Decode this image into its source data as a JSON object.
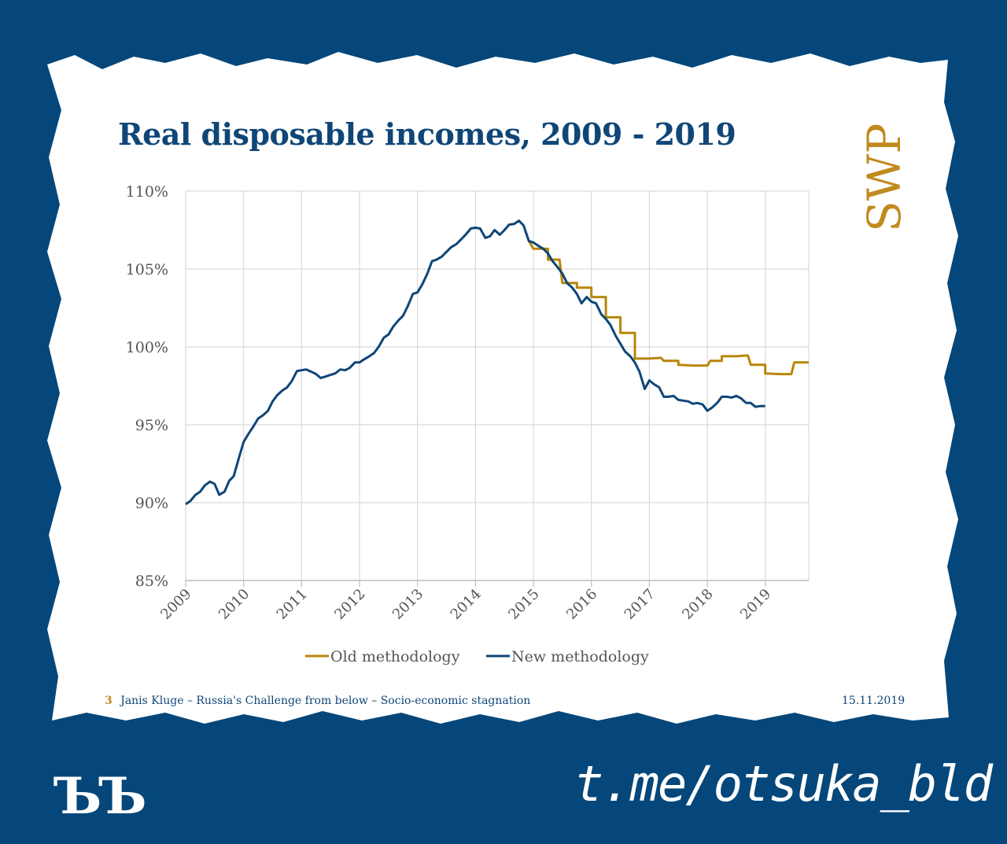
{
  "slide": {
    "title": "Real disposable incomes, 2009 - 2019",
    "brand": "SWP",
    "footer_page": "3",
    "footer_text": "Janis Kluge – Russia's Challenge from below – Socio-economic stagnation",
    "footer_date": "15.11.2019"
  },
  "overlay": {
    "logo_text": "ЪЪ",
    "channel": "t.me/otsuka_bld"
  },
  "colors": {
    "background": "#05477a",
    "new_methodology": "#0f4677",
    "old_methodology": "#b8860b",
    "brand_gold": "#c08a1e"
  },
  "chart_data": {
    "type": "line",
    "title": "Real disposable incomes, 2009 - 2019",
    "xlabel": "",
    "ylabel": "",
    "xlim": [
      2009,
      2019.75
    ],
    "ylim": [
      85,
      110
    ],
    "yticks": [
      85,
      90,
      95,
      100,
      105,
      110
    ],
    "ytick_labels": [
      "85%",
      "90%",
      "95%",
      "100%",
      "105%",
      "110%"
    ],
    "xticks": [
      2009,
      2010,
      2011,
      2012,
      2013,
      2014,
      2015,
      2016,
      2017,
      2018,
      2019
    ],
    "xtick_labels": [
      "2009",
      "2010",
      "2011",
      "2012",
      "2013",
      "2014",
      "2015",
      "2016",
      "2017",
      "2018",
      "2019"
    ],
    "grid": true,
    "legend_position": "bottom",
    "series": [
      {
        "name": "Old methodology",
        "color": "#b8860b",
        "points": [
          [
            2014.92,
            106.8
          ],
          [
            2015.0,
            106.3
          ],
          [
            2015.25,
            106.3
          ],
          [
            2015.25,
            105.6
          ],
          [
            2015.45,
            105.6
          ],
          [
            2015.5,
            104.1
          ],
          [
            2015.75,
            104.1
          ],
          [
            2015.75,
            103.8
          ],
          [
            2016.0,
            103.8
          ],
          [
            2016.0,
            103.2
          ],
          [
            2016.25,
            103.2
          ],
          [
            2016.25,
            101.9
          ],
          [
            2016.5,
            101.9
          ],
          [
            2016.5,
            100.9
          ],
          [
            2016.75,
            100.9
          ],
          [
            2016.75,
            99.25
          ],
          [
            2017.0,
            99.25
          ],
          [
            2017.2,
            99.3
          ],
          [
            2017.25,
            99.1
          ],
          [
            2017.5,
            99.1
          ],
          [
            2017.5,
            98.85
          ],
          [
            2017.75,
            98.8
          ],
          [
            2018.0,
            98.8
          ],
          [
            2018.05,
            99.1
          ],
          [
            2018.25,
            99.1
          ],
          [
            2018.25,
            99.4
          ],
          [
            2018.5,
            99.4
          ],
          [
            2018.7,
            99.45
          ],
          [
            2018.75,
            98.85
          ],
          [
            2019.0,
            98.85
          ],
          [
            2019.0,
            98.3
          ],
          [
            2019.25,
            98.25
          ],
          [
            2019.45,
            98.25
          ],
          [
            2019.5,
            99.0
          ],
          [
            2019.75,
            99.0
          ]
        ]
      },
      {
        "name": "New methodology",
        "color": "#0f4677",
        "points": [
          [
            2009.0,
            89.9
          ],
          [
            2009.08,
            90.1
          ],
          [
            2009.17,
            90.5
          ],
          [
            2009.25,
            90.7
          ],
          [
            2009.33,
            91.1
          ],
          [
            2009.42,
            91.35
          ],
          [
            2009.5,
            91.2
          ],
          [
            2009.58,
            90.5
          ],
          [
            2009.67,
            90.7
          ],
          [
            2009.75,
            91.4
          ],
          [
            2009.83,
            91.7
          ],
          [
            2009.92,
            92.9
          ],
          [
            2010.0,
            93.9
          ],
          [
            2010.08,
            94.4
          ],
          [
            2010.17,
            94.9
          ],
          [
            2010.25,
            95.4
          ],
          [
            2010.33,
            95.6
          ],
          [
            2010.42,
            95.9
          ],
          [
            2010.5,
            96.5
          ],
          [
            2010.58,
            96.9
          ],
          [
            2010.67,
            97.2
          ],
          [
            2010.75,
            97.4
          ],
          [
            2010.83,
            97.8
          ],
          [
            2010.92,
            98.45
          ],
          [
            2011.0,
            98.5
          ],
          [
            2011.08,
            98.55
          ],
          [
            2011.17,
            98.4
          ],
          [
            2011.25,
            98.25
          ],
          [
            2011.33,
            98.0
          ],
          [
            2011.42,
            98.1
          ],
          [
            2011.5,
            98.2
          ],
          [
            2011.58,
            98.3
          ],
          [
            2011.67,
            98.55
          ],
          [
            2011.75,
            98.5
          ],
          [
            2011.83,
            98.65
          ],
          [
            2011.92,
            99.0
          ],
          [
            2012.0,
            99.0
          ],
          [
            2012.08,
            99.2
          ],
          [
            2012.17,
            99.4
          ],
          [
            2012.25,
            99.6
          ],
          [
            2012.33,
            100.0
          ],
          [
            2012.42,
            100.6
          ],
          [
            2012.5,
            100.8
          ],
          [
            2012.58,
            101.3
          ],
          [
            2012.67,
            101.7
          ],
          [
            2012.75,
            102.0
          ],
          [
            2012.83,
            102.6
          ],
          [
            2012.92,
            103.4
          ],
          [
            2013.0,
            103.5
          ],
          [
            2013.08,
            104.0
          ],
          [
            2013.17,
            104.7
          ],
          [
            2013.25,
            105.5
          ],
          [
            2013.33,
            105.6
          ],
          [
            2013.42,
            105.8
          ],
          [
            2013.5,
            106.1
          ],
          [
            2013.58,
            106.4
          ],
          [
            2013.67,
            106.6
          ],
          [
            2013.75,
            106.9
          ],
          [
            2013.83,
            107.2
          ],
          [
            2013.92,
            107.6
          ],
          [
            2014.0,
            107.65
          ],
          [
            2014.08,
            107.6
          ],
          [
            2014.17,
            107.0
          ],
          [
            2014.25,
            107.1
          ],
          [
            2014.33,
            107.5
          ],
          [
            2014.42,
            107.2
          ],
          [
            2014.5,
            107.5
          ],
          [
            2014.58,
            107.85
          ],
          [
            2014.67,
            107.9
          ],
          [
            2014.75,
            108.1
          ],
          [
            2014.83,
            107.8
          ],
          [
            2014.92,
            106.8
          ],
          [
            2015.0,
            106.7
          ],
          [
            2015.08,
            106.5
          ],
          [
            2015.17,
            106.3
          ],
          [
            2015.25,
            106.0
          ],
          [
            2015.33,
            105.5
          ],
          [
            2015.42,
            105.1
          ],
          [
            2015.5,
            104.7
          ],
          [
            2015.58,
            104.1
          ],
          [
            2015.67,
            103.8
          ],
          [
            2015.75,
            103.4
          ],
          [
            2015.83,
            102.8
          ],
          [
            2015.92,
            103.2
          ],
          [
            2016.0,
            102.9
          ],
          [
            2016.08,
            102.8
          ],
          [
            2016.17,
            102.1
          ],
          [
            2016.25,
            101.8
          ],
          [
            2016.33,
            101.4
          ],
          [
            2016.42,
            100.7
          ],
          [
            2016.5,
            100.2
          ],
          [
            2016.58,
            99.7
          ],
          [
            2016.67,
            99.4
          ],
          [
            2016.75,
            99.0
          ],
          [
            2016.83,
            98.4
          ],
          [
            2016.92,
            97.3
          ],
          [
            2017.0,
            97.85
          ],
          [
            2017.08,
            97.6
          ],
          [
            2017.17,
            97.4
          ],
          [
            2017.25,
            96.8
          ],
          [
            2017.33,
            96.8
          ],
          [
            2017.42,
            96.85
          ],
          [
            2017.5,
            96.6
          ],
          [
            2017.58,
            96.55
          ],
          [
            2017.67,
            96.5
          ],
          [
            2017.75,
            96.35
          ],
          [
            2017.83,
            96.4
          ],
          [
            2017.92,
            96.3
          ],
          [
            2018.0,
            95.9
          ],
          [
            2018.08,
            96.1
          ],
          [
            2018.17,
            96.4
          ],
          [
            2018.25,
            96.8
          ],
          [
            2018.33,
            96.8
          ],
          [
            2018.42,
            96.75
          ],
          [
            2018.5,
            96.85
          ],
          [
            2018.58,
            96.7
          ],
          [
            2018.67,
            96.4
          ],
          [
            2018.75,
            96.4
          ],
          [
            2018.83,
            96.15
          ],
          [
            2018.92,
            96.2
          ],
          [
            2019.0,
            96.2
          ]
        ]
      }
    ]
  }
}
